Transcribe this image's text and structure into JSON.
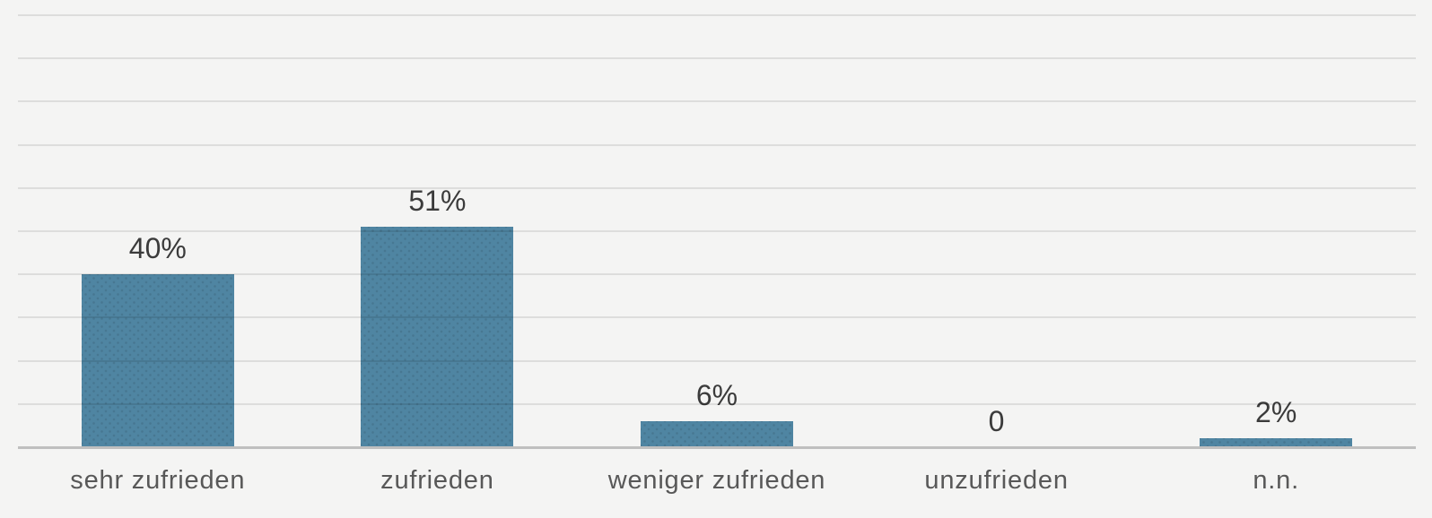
{
  "chart_data": {
    "type": "bar",
    "categories": [
      "sehr zufrieden",
      "zufrieden",
      "weniger zufrieden",
      "unzufrieden",
      "n.n."
    ],
    "values": [
      40,
      51,
      6,
      0,
      2
    ],
    "value_labels": [
      "40%",
      "51%",
      "6%",
      "0",
      "2%"
    ],
    "title": "",
    "xlabel": "",
    "ylabel": "",
    "ylim": [
      0,
      100
    ],
    "gridline_step": 10,
    "grid": true,
    "legend": false,
    "colors": {
      "background": "#f4f4f3",
      "bar_fill": "#4f85a2",
      "gridline_rgba": "rgba(0,0,0,0.095)",
      "axis_line": "#bfbfbf",
      "value_label_text": "#3b3b3b",
      "category_label_text": "#585858"
    }
  }
}
